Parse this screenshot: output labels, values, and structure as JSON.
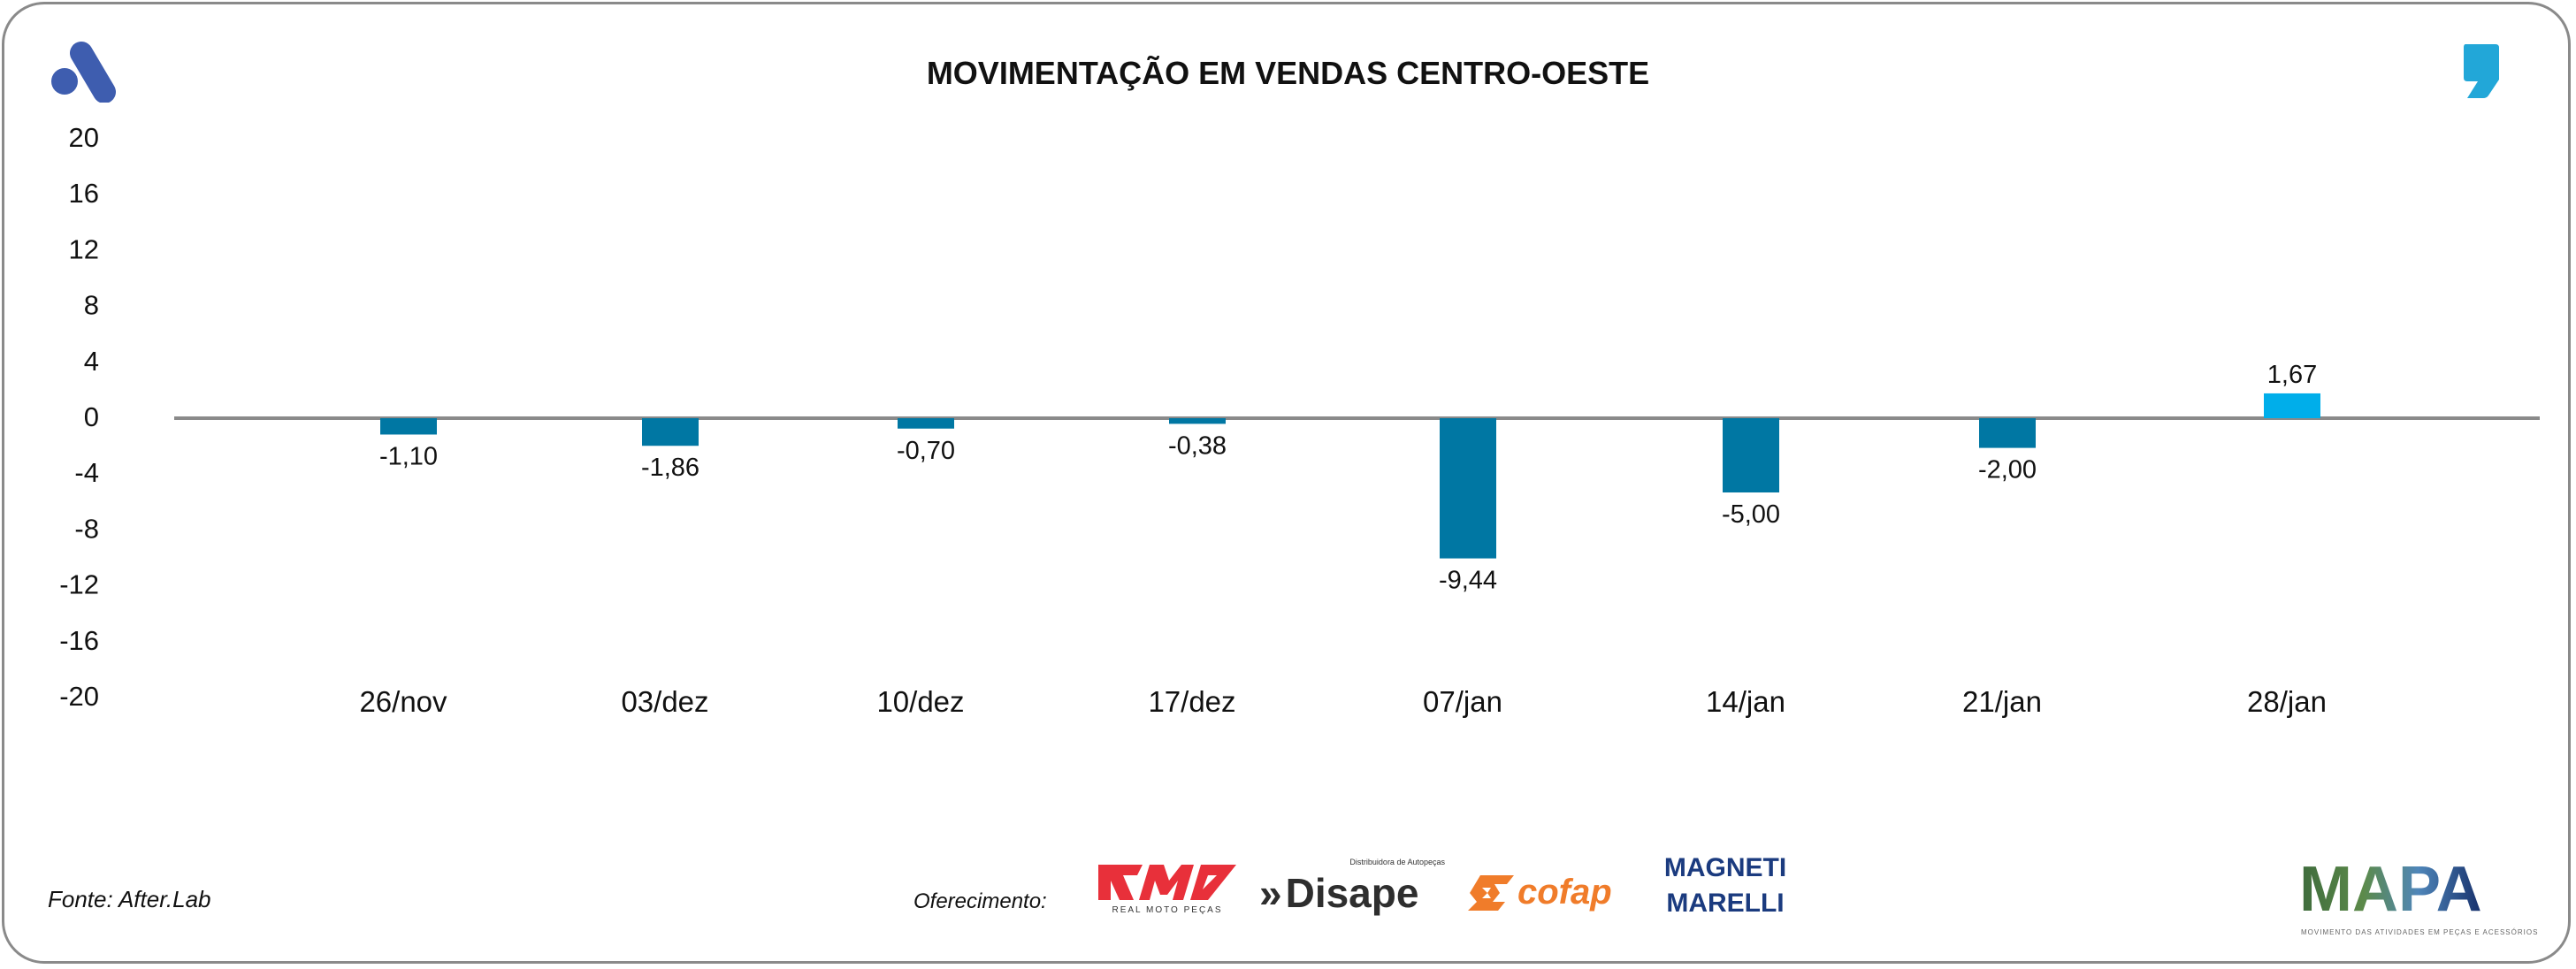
{
  "header": {
    "title": "MOVIMENTAÇÃO EM VENDAS CENTRO-OESTE",
    "brand_icon": "a-logo-icon",
    "quote_icon": "comma-quote-icon"
  },
  "colors": {
    "negative_bar": "#0077a3",
    "positive_bar": "#00aeea",
    "zero_line": "#8a8a8a",
    "brand_blue": "#3e5daf",
    "quote_blue": "#22a7d8",
    "frame": "#8a8a8a"
  },
  "chart_data": {
    "type": "bar",
    "title": "MOVIMENTAÇÃO EM VENDAS CENTRO-OESTE",
    "xlabel": "",
    "ylabel": "",
    "categories": [
      "26/nov",
      "03/dez",
      "10/dez",
      "17/dez",
      "07/jan",
      "14/jan",
      "21/jan",
      "28/jan"
    ],
    "values": [
      -1.1,
      -1.86,
      -0.7,
      -0.38,
      -9.44,
      -5.0,
      -2.0,
      1.67
    ],
    "value_labels": [
      "-1,10",
      "-1,86",
      "-0,70",
      "-0,38",
      "-9,44",
      "-5,00",
      "-2,00",
      "1,67"
    ],
    "ylim": [
      -20,
      20
    ],
    "yticks": [
      20,
      16,
      12,
      8,
      4,
      0,
      -4,
      -8,
      -12,
      -16,
      -20
    ],
    "grid": false,
    "legend": "none"
  },
  "footer": {
    "source": "Fonte: After.Lab",
    "sponsor_label": "Oferecimento:",
    "sponsors": [
      {
        "name": "RMP",
        "subtitle": "REAL MOTO PEÇAS"
      },
      {
        "name": "Disape",
        "subtitle": "Distribuidora de Autopeças"
      },
      {
        "name": "cofap",
        "subtitle": ""
      },
      {
        "name": "MAGNETI",
        "subtitle": "MARELLI"
      }
    ],
    "mapa": {
      "name": "MAPA",
      "subtitle": "MOVIMENTO DAS ATIVIDADES EM PEÇAS E ACESSÓRIOS"
    }
  }
}
